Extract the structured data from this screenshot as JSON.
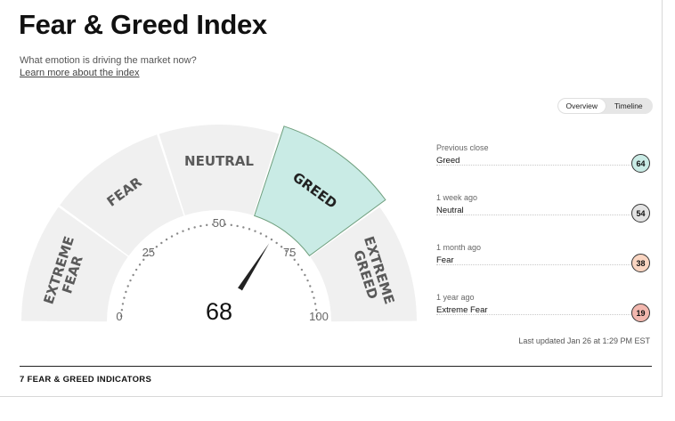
{
  "header": {
    "title": "Fear & Greed Index",
    "subtitle": "What emotion is driving the market now?",
    "learn_more": "Learn more about the index"
  },
  "view_toggle": {
    "options": [
      "Overview",
      "Timeline"
    ],
    "selected": "Overview"
  },
  "gauge": {
    "value": "68",
    "value_fraction": 0.68,
    "zones": [
      "EXTREME FEAR",
      "FEAR",
      "NEUTRAL",
      "GREED",
      "EXTREME GREED"
    ],
    "active_zone": "GREED",
    "active_color": "#c9ebe5",
    "active_border": "#6f9f7e",
    "inactive_color": "#f0f0f0",
    "tick_labels": [
      "0",
      "25",
      "50",
      "75",
      "100"
    ]
  },
  "history": [
    {
      "when": "Previous close",
      "label": "Greed",
      "value": "64",
      "color": "#c9ebe5"
    },
    {
      "when": "1 week ago",
      "label": "Neutral",
      "value": "54",
      "color": "#e3e3e3"
    },
    {
      "when": "1 month ago",
      "label": "Fear",
      "value": "38",
      "color": "#fad5c1"
    },
    {
      "when": "1 year ago",
      "label": "Extreme Fear",
      "value": "19",
      "color": "#f2b7ae"
    }
  ],
  "last_updated": "Last updated Jan 26 at 1:29 PM EST",
  "indicators_heading": "7 FEAR & GREED INDICATORS"
}
